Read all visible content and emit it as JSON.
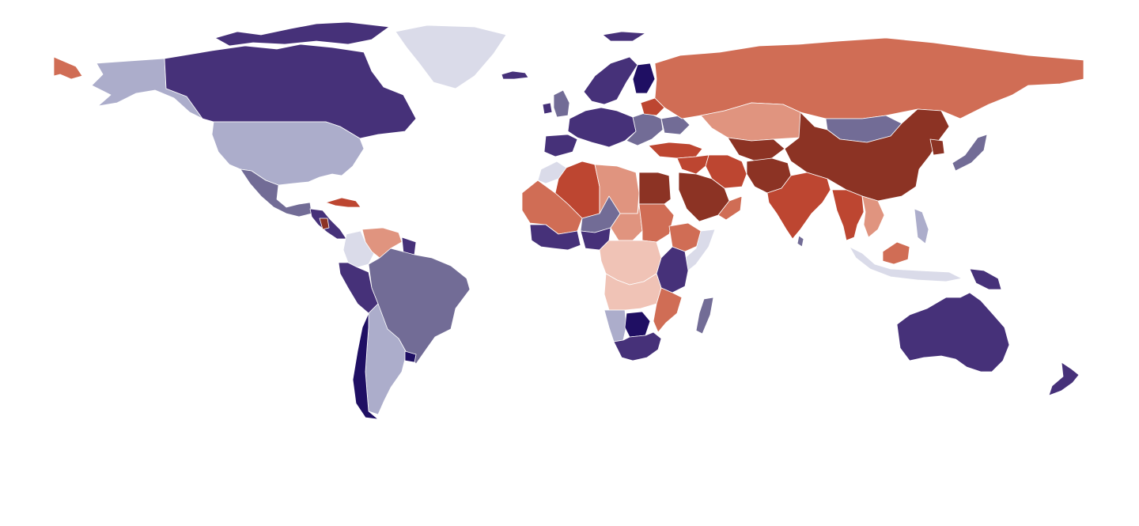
{
  "map": {
    "type": "choropleth",
    "projection": "equirectangular",
    "legend": null,
    "palette": {
      "d-4": "#1f0f63",
      "d-3": "#463179",
      "d-2": "#726c96",
      "d-1": "#acadcb",
      "d-0": "#dadbe9",
      "r-1": "#f0c3b6",
      "r-2": "#e0947f",
      "r-3": "#d06d55",
      "r-4": "#bd4631",
      "r-5": "#8c3324"
    },
    "regions": [
      {
        "id": "alaska",
        "level": "d-1"
      },
      {
        "id": "chukotka",
        "level": "r-3"
      },
      {
        "id": "canada",
        "level": "d-3"
      },
      {
        "id": "canada-arctic-islands",
        "level": "d-3"
      },
      {
        "id": "greenland",
        "level": "d-0"
      },
      {
        "id": "iceland",
        "level": "d-3"
      },
      {
        "id": "svalbard",
        "level": "d-3"
      },
      {
        "id": "united-states",
        "level": "d-1"
      },
      {
        "id": "mexico",
        "level": "d-2"
      },
      {
        "id": "cuba",
        "level": "r-4"
      },
      {
        "id": "central-america",
        "level": "d-3"
      },
      {
        "id": "nicaragua",
        "level": "r-5"
      },
      {
        "id": "venezuela",
        "level": "r-2"
      },
      {
        "id": "colombia",
        "level": "d-0"
      },
      {
        "id": "guianas",
        "level": "d-3"
      },
      {
        "id": "ecuador-peru",
        "level": "d-3"
      },
      {
        "id": "brazil",
        "level": "d-2"
      },
      {
        "id": "bolivia-argentina",
        "level": "d-1"
      },
      {
        "id": "chile",
        "level": "d-4"
      },
      {
        "id": "uruguay",
        "level": "d-4"
      },
      {
        "id": "united-kingdom",
        "level": "d-2"
      },
      {
        "id": "ireland",
        "level": "d-3"
      },
      {
        "id": "scandinavia",
        "level": "d-3"
      },
      {
        "id": "finland",
        "level": "d-4"
      },
      {
        "id": "western-europe",
        "level": "d-3"
      },
      {
        "id": "iberia",
        "level": "d-3"
      },
      {
        "id": "eastern-europe",
        "level": "d-2"
      },
      {
        "id": "belarus",
        "level": "r-4"
      },
      {
        "id": "ukraine",
        "level": "d-2"
      },
      {
        "id": "russia",
        "level": "r-3"
      },
      {
        "id": "turkey",
        "level": "r-4"
      },
      {
        "id": "kazakhstan",
        "level": "r-2"
      },
      {
        "id": "central-asia",
        "level": "r-5"
      },
      {
        "id": "mongolia",
        "level": "d-2"
      },
      {
        "id": "china",
        "level": "r-5"
      },
      {
        "id": "north-korea",
        "level": "r-5"
      },
      {
        "id": "japan",
        "level": "d-2"
      },
      {
        "id": "iran",
        "level": "r-4"
      },
      {
        "id": "iraq-syria",
        "level": "r-4"
      },
      {
        "id": "saudi-arabia",
        "level": "r-5"
      },
      {
        "id": "yemen-oman",
        "level": "r-3"
      },
      {
        "id": "afghanistan-pakistan",
        "level": "r-5"
      },
      {
        "id": "india",
        "level": "r-4"
      },
      {
        "id": "sri-lanka",
        "level": "d-2"
      },
      {
        "id": "myanmar-thailand",
        "level": "r-4"
      },
      {
        "id": "vietnam-laos",
        "level": "r-2"
      },
      {
        "id": "philippines",
        "level": "d-1"
      },
      {
        "id": "malaysia-indonesia",
        "level": "d-0"
      },
      {
        "id": "borneo",
        "level": "r-3"
      },
      {
        "id": "papua-new-guinea",
        "level": "d-3"
      },
      {
        "id": "australia",
        "level": "d-3"
      },
      {
        "id": "new-zealand",
        "level": "d-3"
      },
      {
        "id": "morocco",
        "level": "d-0"
      },
      {
        "id": "algeria",
        "level": "r-4"
      },
      {
        "id": "libya",
        "level": "r-2"
      },
      {
        "id": "egypt",
        "level": "r-5"
      },
      {
        "id": "mauritania-mali",
        "level": "r-3"
      },
      {
        "id": "niger",
        "level": "d-2"
      },
      {
        "id": "chad",
        "level": "r-2"
      },
      {
        "id": "sudan",
        "level": "r-3"
      },
      {
        "id": "ethiopia",
        "level": "r-3"
      },
      {
        "id": "somalia",
        "level": "d-0"
      },
      {
        "id": "west-africa",
        "level": "d-3"
      },
      {
        "id": "nigeria",
        "level": "d-3"
      },
      {
        "id": "central-africa",
        "level": "r-1"
      },
      {
        "id": "kenya-tanzania",
        "level": "d-3"
      },
      {
        "id": "angola-zambia",
        "level": "r-1"
      },
      {
        "id": "mozambique",
        "level": "r-3"
      },
      {
        "id": "madagascar",
        "level": "d-2"
      },
      {
        "id": "namibia",
        "level": "d-1"
      },
      {
        "id": "botswana",
        "level": "d-4"
      },
      {
        "id": "south-africa",
        "level": "d-3"
      }
    ]
  }
}
